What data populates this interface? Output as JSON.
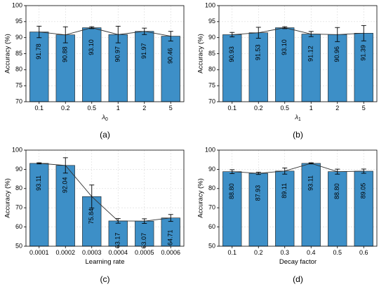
{
  "colors": {
    "bar": "#3d8fc7",
    "bar_edge": "#1a1a1a",
    "grid": "#d9d9d9",
    "line": "#333333"
  },
  "chart_data": [
    {
      "panel": "(a)",
      "type": "bar",
      "xlabel": "λ",
      "xlabel_sub": "0",
      "ylabel": "Accuracy (%)",
      "categories": [
        "0.1",
        "0.2",
        "0.5",
        "1",
        "2",
        "5"
      ],
      "values": [
        91.78,
        90.88,
        93.1,
        90.97,
        91.97,
        90.46
      ],
      "value_labels": [
        "91.78",
        "90.88",
        "93.10",
        "90.97",
        "91.97",
        "90.46"
      ],
      "errors": [
        1.8,
        2.5,
        0.3,
        2.6,
        1.0,
        1.5
      ],
      "ylim": [
        70,
        100
      ],
      "yticks": [
        70,
        75,
        80,
        85,
        90,
        95,
        100
      ],
      "connect_line": true,
      "grid": true
    },
    {
      "panel": "(b)",
      "type": "bar",
      "xlabel": "λ",
      "xlabel_sub": "1",
      "ylabel": "Accuracy (%)",
      "categories": [
        "0.1",
        "0.2",
        "0.5",
        "1",
        "2",
        "5"
      ],
      "values": [
        90.93,
        91.53,
        93.1,
        91.12,
        90.96,
        91.39
      ],
      "value_labels": [
        "90.93",
        "91.53",
        "93.10",
        "91.12",
        "90.96",
        "91.39"
      ],
      "errors": [
        0.7,
        1.7,
        0.3,
        0.8,
        2.2,
        2.4
      ],
      "ylim": [
        70,
        100
      ],
      "yticks": [
        70,
        75,
        80,
        85,
        90,
        95,
        100
      ],
      "connect_line": true,
      "grid": true
    },
    {
      "panel": "(c)",
      "type": "bar",
      "xlabel": "Learning rate",
      "ylabel": "Accuracy (%)",
      "categories": [
        "0.0001",
        "0.0002",
        "0.0003",
        "0.0004",
        "0.0005",
        "0.0006"
      ],
      "values": [
        93.11,
        92.04,
        75.84,
        63.17,
        63.07,
        64.71
      ],
      "value_labels": [
        "93.11",
        "92.04",
        "75.84",
        "63.17",
        "63.07",
        "64.71"
      ],
      "errors": [
        0.3,
        4.0,
        6.0,
        1.2,
        1.2,
        1.8
      ],
      "ylim": [
        50,
        100
      ],
      "yticks": [
        50,
        60,
        70,
        80,
        90,
        100
      ],
      "connect_line": true,
      "grid": true
    },
    {
      "panel": "(d)",
      "type": "bar",
      "xlabel": "Decay factor",
      "ylabel": "Accuracy (%)",
      "categories": [
        "0.1",
        "0.2",
        "0.3",
        "0.4",
        "0.5",
        "0.6"
      ],
      "values": [
        88.8,
        87.93,
        89.11,
        93.11,
        88.8,
        89.05
      ],
      "value_labels": [
        "88.80",
        "87.93",
        "89.11",
        "93.11",
        "88.80",
        "89.05"
      ],
      "errors": [
        1.0,
        0.6,
        1.6,
        0.3,
        1.3,
        1.1
      ],
      "ylim": [
        50,
        100
      ],
      "yticks": [
        50,
        60,
        70,
        80,
        90,
        100
      ],
      "connect_line": true,
      "grid": true
    }
  ]
}
